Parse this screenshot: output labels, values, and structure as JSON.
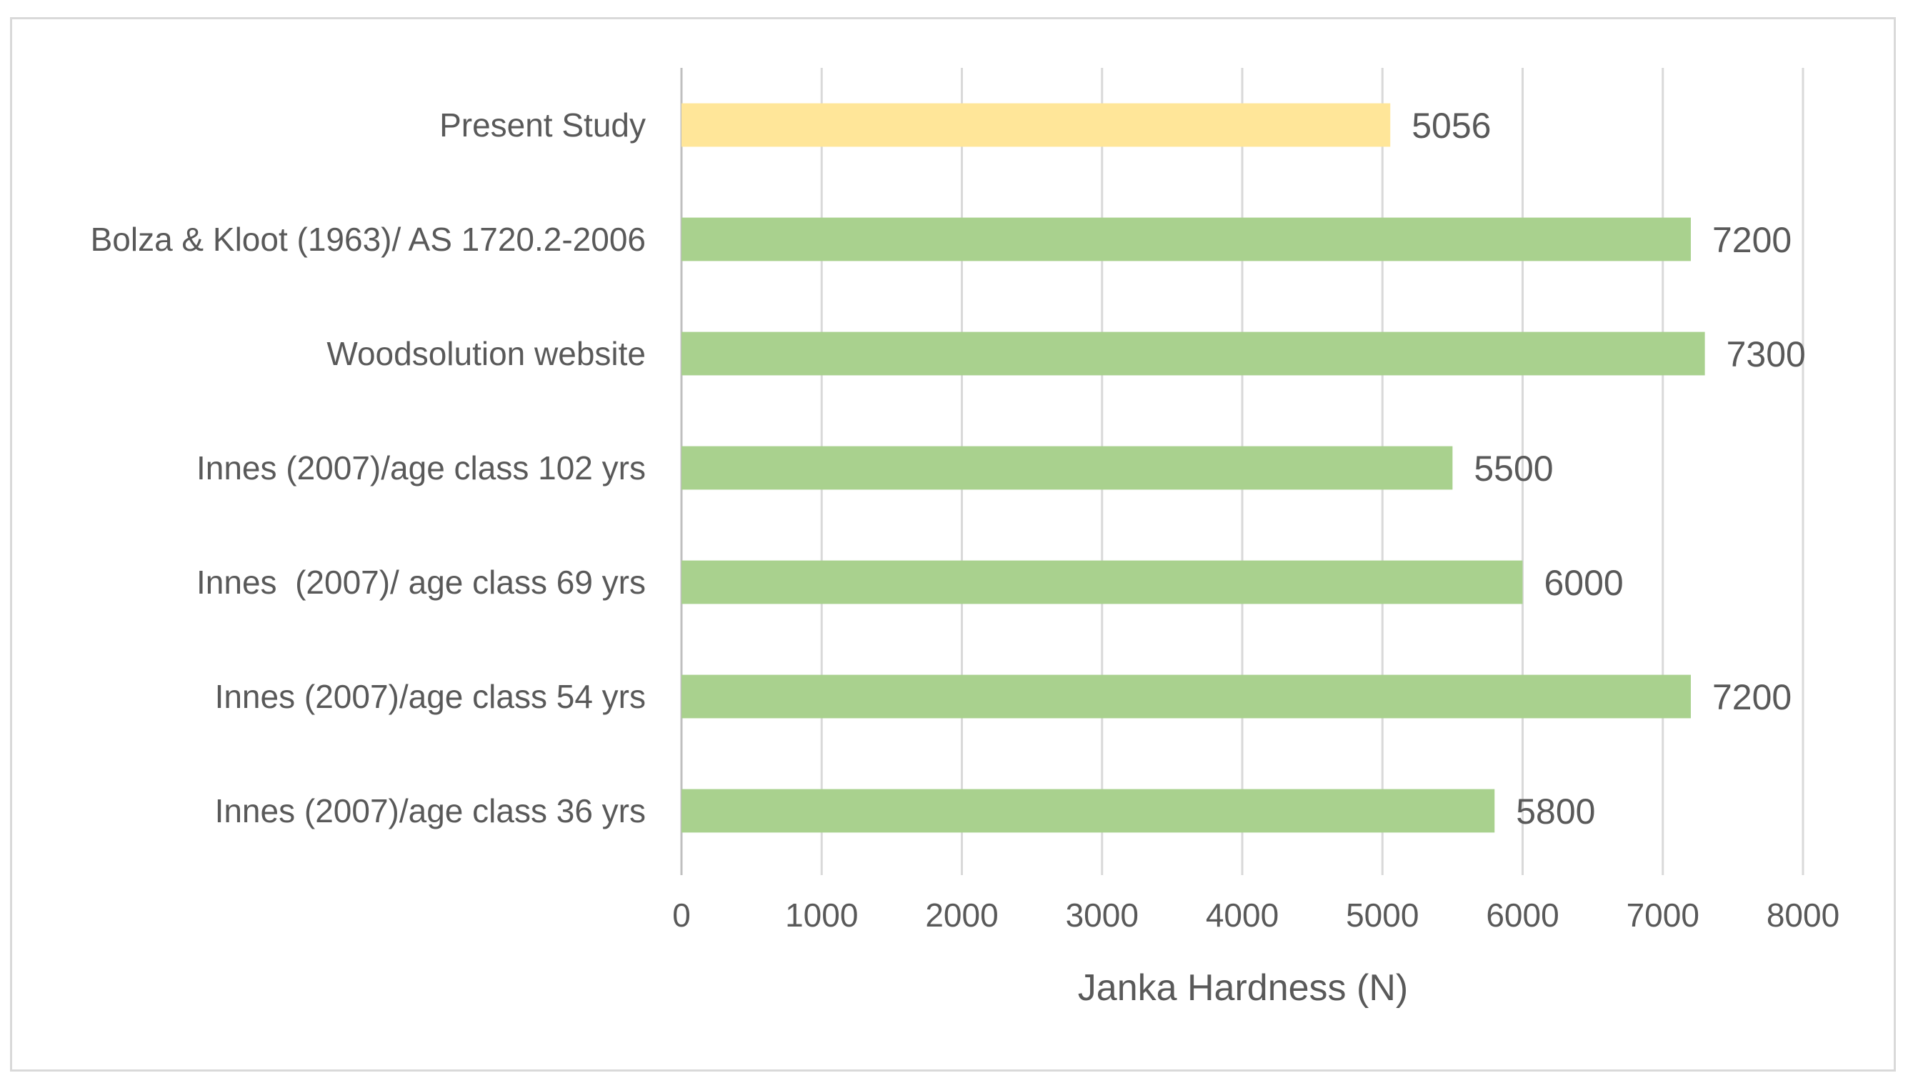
{
  "chart_data": {
    "type": "bar",
    "orientation": "horizontal",
    "title": "",
    "xlabel": "Janka Hardness (N)",
    "ylabel": "",
    "xlim": [
      0,
      8000
    ],
    "xticks": [
      "0",
      "1000",
      "2000",
      "3000",
      "4000",
      "5000",
      "6000",
      "7000",
      "8000"
    ],
    "grid": true,
    "legend": "none",
    "categories": [
      "Present Study",
      "Bolza & Kloot (1963)/ AS 1720.2-2006",
      "Woodsolution website",
      "Innes (2007)/age class 102 yrs",
      "Innes  (2007)/ age class 69 yrs",
      "Innes (2007)/age class 54 yrs",
      "Innes (2007)/age class 36 yrs"
    ],
    "values": [
      5056,
      7200,
      7300,
      5500,
      6000,
      7200,
      5800
    ],
    "data_labels": [
      "5056",
      "7200",
      "7300",
      "5500",
      "6000",
      "7200",
      "5800"
    ],
    "colors": [
      "#ffe699",
      "#a9d18e",
      "#a9d18e",
      "#a9d18e",
      "#a9d18e",
      "#a9d18e",
      "#a9d18e"
    ],
    "gridline_color": "#d9d9d9",
    "axis_color": "#bfbfbf"
  }
}
